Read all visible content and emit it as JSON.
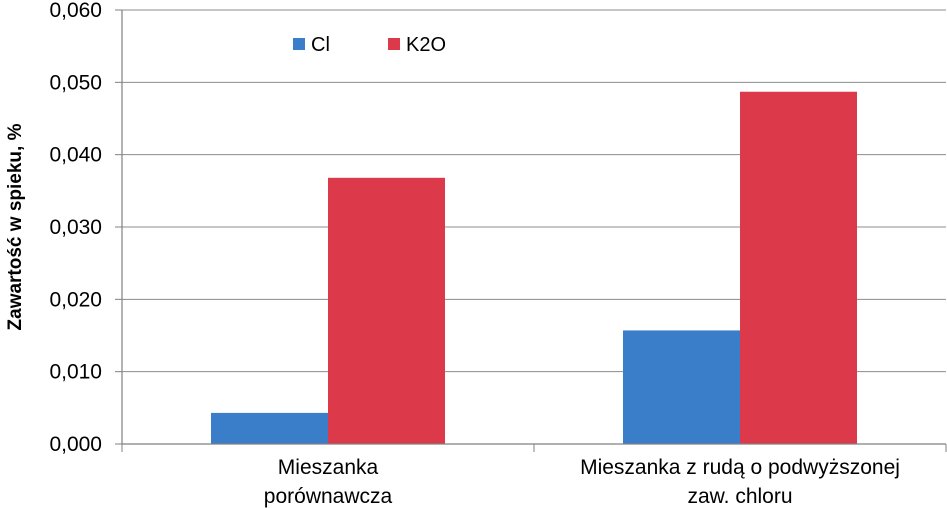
{
  "chart_data": {
    "type": "bar",
    "title": "",
    "xlabel": "",
    "ylabel": "Zawartość w spieku, %",
    "ylim": [
      0,
      0.06
    ],
    "yticks": [
      "0,000",
      "0,010",
      "0,020",
      "0,030",
      "0,040",
      "0,050",
      "0,060"
    ],
    "categories": [
      [
        "Mieszanka",
        "porównawcza"
      ],
      [
        "Mieszanka z rudą o podwyższonej",
        "zaw. chloru"
      ]
    ],
    "series": [
      {
        "name": "Cl",
        "color": "#3a7dc9",
        "values": [
          0.0043,
          0.0157
        ]
      },
      {
        "name": "K2O",
        "color": "#dc3a4a",
        "values": [
          0.0368,
          0.0487
        ]
      }
    ],
    "grid": true,
    "legend_position": "top-left"
  }
}
